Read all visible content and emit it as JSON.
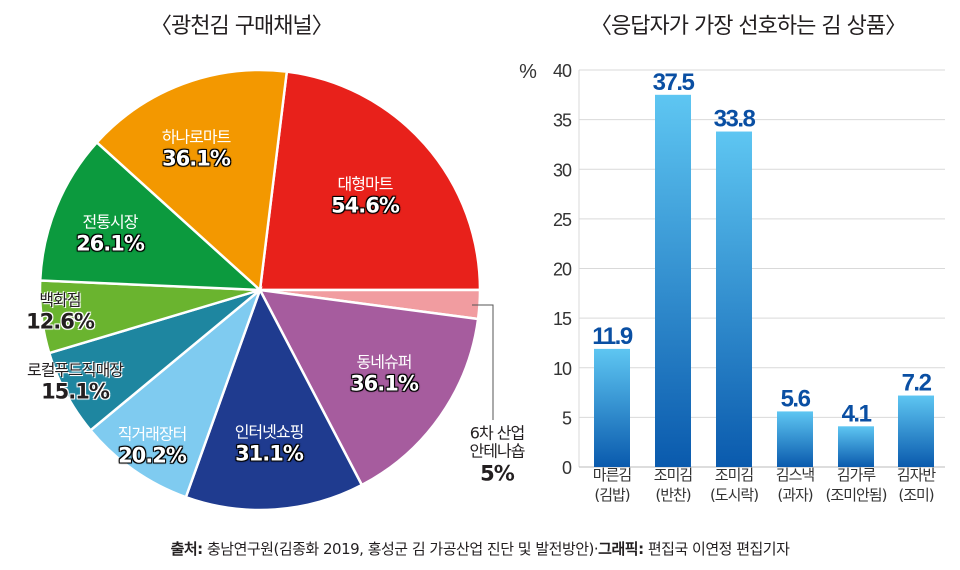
{
  "chart_data": [
    {
      "type": "pie",
      "title": "〈광천김 구매채널〉",
      "unit": "%",
      "slices": [
        {
          "label": "대형마트",
          "value": 54.6,
          "value_label": "54.6%",
          "color": "#e8211b"
        },
        {
          "label": "6차 산업 안테나숍",
          "label_lines": [
            "6차 산업",
            "안테나숍"
          ],
          "value": 5,
          "value_label": "5%",
          "color": "#f19ca0"
        },
        {
          "label": "동네슈퍼",
          "value": 36.1,
          "value_label": "36.1%",
          "color": "#a65c9e"
        },
        {
          "label": "인터넷쇼핑",
          "value": 31.1,
          "value_label": "31.1%",
          "color": "#1f3b8f"
        },
        {
          "label": "직거래장터",
          "value": 20.2,
          "value_label": "20.2%",
          "color": "#7fcbf0"
        },
        {
          "label": "로컬푸드직매장",
          "value": 15.1,
          "value_label": "15.1%",
          "color": "#1e86a0"
        },
        {
          "label": "백화점",
          "value": 12.6,
          "value_label": "12.6%",
          "color": "#6ab42f"
        },
        {
          "label": "전통시장",
          "value": 26.1,
          "value_label": "26.1%",
          "color": "#0c9a3e"
        },
        {
          "label": "하나로마트",
          "value": 36.1,
          "value_label": "36.1%",
          "color": "#f39800"
        }
      ]
    },
    {
      "type": "bar",
      "title": "〈응답자가 가장 선호하는 김 상품〉",
      "ylabel": "%",
      "ylim": [
        0,
        40
      ],
      "yticks": [
        0,
        5,
        10,
        15,
        20,
        25,
        30,
        35,
        40
      ],
      "grid": true,
      "categories": [
        [
          "마른김",
          "(김밥)"
        ],
        [
          "조미김",
          "(반찬)"
        ],
        [
          "조미김",
          "(도시락)"
        ],
        [
          "김스낵",
          "(과자)"
        ],
        [
          "김가루",
          "(조미안됨)"
        ],
        [
          "김자반",
          "(조미)"
        ]
      ],
      "values": [
        11.9,
        37.5,
        33.8,
        5.6,
        4.1,
        7.2
      ],
      "value_labels": [
        "11.9",
        "37.5",
        "33.8",
        "5.6",
        "4.1",
        "7.2"
      ],
      "colors": {
        "bar_top": "#5ec6f2",
        "bar_bottom": "#0a5aad",
        "label": "#0a4fa3",
        "grid": "#d9d9d9"
      }
    }
  ],
  "source": {
    "source_label": "출처:",
    "source_text": "충남연구원(김종화 2019, 홍성군 김 가공산업 진단 및 발전방안)·",
    "graphic_label": "그래픽:",
    "graphic_text": "편집국 이연정 편집기자"
  }
}
